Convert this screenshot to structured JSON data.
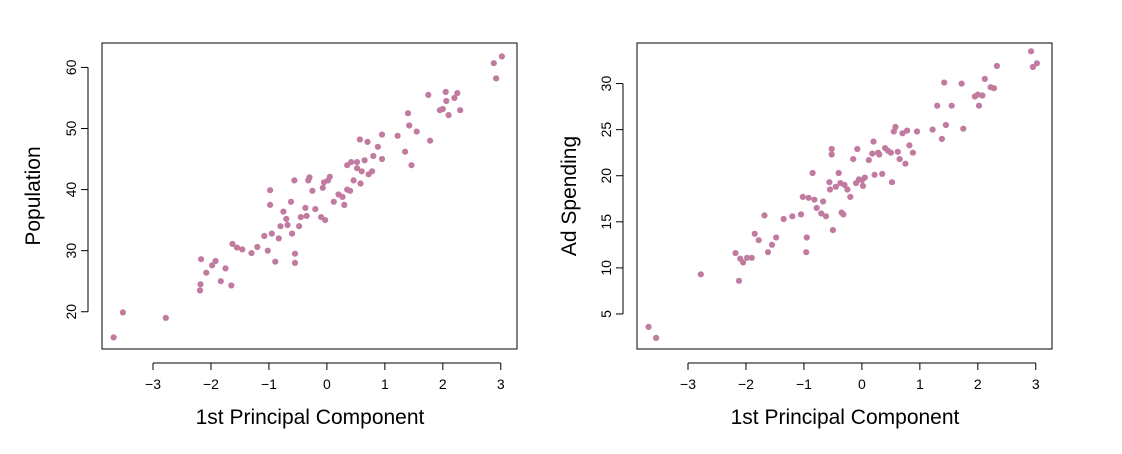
{
  "chart_data": [
    {
      "type": "scatter",
      "title": "",
      "xlabel": "1st Principal Component",
      "ylabel": "Population",
      "xlim": [
        -3.88,
        3.28
      ],
      "ylim": [
        13.9,
        64.0
      ],
      "xticks": [
        -3,
        -2,
        -1,
        0,
        1,
        2,
        3
      ],
      "xtick_labels": [
        "−3",
        "−2",
        "−1",
        "0",
        "1",
        "2",
        "3"
      ],
      "yticks": [
        20,
        30,
        40,
        50,
        60
      ],
      "ytick_labels": [
        "20",
        "30",
        "40",
        "50",
        "60"
      ],
      "grid": false,
      "point_color": "#c27ba0",
      "points": [
        [
          -3.68,
          15.8
        ],
        [
          -3.52,
          19.9
        ],
        [
          -2.78,
          19.0
        ],
        [
          -2.19,
          23.5
        ],
        [
          -2.18,
          24.5
        ],
        [
          -2.17,
          28.6
        ],
        [
          -2.08,
          26.4
        ],
        [
          -1.98,
          27.6
        ],
        [
          -1.92,
          28.3
        ],
        [
          -1.83,
          25.0
        ],
        [
          -1.75,
          27.1
        ],
        [
          -1.65,
          24.3
        ],
        [
          -1.63,
          31.1
        ],
        [
          -1.55,
          30.5
        ],
        [
          -1.46,
          30.2
        ],
        [
          -1.3,
          29.6
        ],
        [
          -1.2,
          30.6
        ],
        [
          -1.08,
          32.4
        ],
        [
          -1.02,
          30.0
        ],
        [
          -0.98,
          39.9
        ],
        [
          -0.98,
          37.5
        ],
        [
          -0.95,
          32.8
        ],
        [
          -0.89,
          28.2
        ],
        [
          -0.83,
          32.0
        ],
        [
          -0.8,
          34.0
        ],
        [
          -0.75,
          36.4
        ],
        [
          -0.7,
          35.2
        ],
        [
          -0.68,
          34.2
        ],
        [
          -0.62,
          38.0
        ],
        [
          -0.6,
          32.8
        ],
        [
          -0.56,
          41.5
        ],
        [
          -0.55,
          29.5
        ],
        [
          -0.55,
          28.0
        ],
        [
          -0.48,
          34.0
        ],
        [
          -0.45,
          35.5
        ],
        [
          -0.37,
          37.0
        ],
        [
          -0.35,
          35.7
        ],
        [
          -0.32,
          41.5
        ],
        [
          -0.3,
          42.0
        ],
        [
          -0.25,
          39.8
        ],
        [
          -0.2,
          36.8
        ],
        [
          -0.1,
          35.5
        ],
        [
          -0.07,
          40.3
        ],
        [
          -0.05,
          41.2
        ],
        [
          -0.03,
          35.0
        ],
        [
          0.02,
          41.5
        ],
        [
          0.05,
          42.1
        ],
        [
          0.12,
          38.0
        ],
        [
          0.2,
          39.2
        ],
        [
          0.27,
          38.8
        ],
        [
          0.3,
          37.5
        ],
        [
          0.35,
          40.0
        ],
        [
          0.4,
          39.8
        ],
        [
          0.35,
          44.0
        ],
        [
          0.42,
          44.5
        ],
        [
          0.46,
          41.5
        ],
        [
          0.52,
          43.5
        ],
        [
          0.52,
          44.5
        ],
        [
          0.57,
          48.2
        ],
        [
          0.58,
          41.0
        ],
        [
          0.6,
          43.0
        ],
        [
          0.65,
          44.8
        ],
        [
          0.7,
          47.8
        ],
        [
          0.72,
          42.5
        ],
        [
          0.78,
          43.0
        ],
        [
          0.8,
          45.5
        ],
        [
          0.88,
          47.0
        ],
        [
          0.95,
          49.0
        ],
        [
          0.95,
          45.0
        ],
        [
          1.22,
          48.8
        ],
        [
          1.35,
          46.2
        ],
        [
          1.4,
          52.5
        ],
        [
          1.42,
          50.5
        ],
        [
          1.46,
          44.0
        ],
        [
          1.55,
          49.5
        ],
        [
          1.75,
          55.5
        ],
        [
          1.78,
          48.0
        ],
        [
          1.95,
          53.0
        ],
        [
          2.0,
          53.2
        ],
        [
          2.05,
          56.0
        ],
        [
          2.06,
          54.5
        ],
        [
          2.1,
          52.2
        ],
        [
          2.2,
          55.0
        ],
        [
          2.25,
          55.8
        ],
        [
          2.3,
          53.0
        ],
        [
          2.88,
          60.7
        ],
        [
          2.92,
          58.2
        ],
        [
          3.02,
          61.8
        ]
      ]
    },
    {
      "type": "scatter",
      "title": "",
      "xlabel": "1st Principal Component",
      "ylabel": "Ad Spending",
      "xlim": [
        -3.88,
        3.28
      ],
      "ylim": [
        1.2,
        34.4
      ],
      "xticks": [
        -3,
        -2,
        -1,
        0,
        1,
        2,
        3
      ],
      "xtick_labels": [
        "−3",
        "−2",
        "−1",
        "0",
        "1",
        "2",
        "3"
      ],
      "yticks": [
        5,
        10,
        15,
        20,
        25,
        30
      ],
      "ytick_labels": [
        "5",
        "10",
        "15",
        "20",
        "25",
        "30"
      ],
      "grid": false,
      "point_color": "#c27ba0",
      "points": [
        [
          -3.68,
          3.6
        ],
        [
          -3.55,
          2.4
        ],
        [
          -2.78,
          9.3
        ],
        [
          -2.18,
          11.6
        ],
        [
          -2.12,
          8.6
        ],
        [
          -2.1,
          11.0
        ],
        [
          -2.05,
          10.6
        ],
        [
          -1.98,
          11.1
        ],
        [
          -1.9,
          11.1
        ],
        [
          -1.85,
          13.7
        ],
        [
          -1.78,
          13.0
        ],
        [
          -1.68,
          15.7
        ],
        [
          -1.62,
          11.7
        ],
        [
          -1.55,
          12.5
        ],
        [
          -1.48,
          13.3
        ],
        [
          -1.35,
          15.3
        ],
        [
          -1.2,
          15.6
        ],
        [
          -1.05,
          15.8
        ],
        [
          -1.02,
          17.7
        ],
        [
          -0.96,
          11.7
        ],
        [
          -0.95,
          13.3
        ],
        [
          -0.92,
          17.6
        ],
        [
          -0.85,
          20.3
        ],
        [
          -0.82,
          17.4
        ],
        [
          -0.78,
          16.5
        ],
        [
          -0.7,
          15.9
        ],
        [
          -0.67,
          17.2
        ],
        [
          -0.62,
          15.6
        ],
        [
          -0.56,
          19.3
        ],
        [
          -0.55,
          18.5
        ],
        [
          -0.52,
          22.3
        ],
        [
          -0.52,
          22.9
        ],
        [
          -0.5,
          14.1
        ],
        [
          -0.45,
          18.8
        ],
        [
          -0.4,
          20.3
        ],
        [
          -0.37,
          19.2
        ],
        [
          -0.35,
          16.0
        ],
        [
          -0.32,
          15.8
        ],
        [
          -0.3,
          19.0
        ],
        [
          -0.25,
          18.5
        ],
        [
          -0.2,
          17.7
        ],
        [
          -0.15,
          21.8
        ],
        [
          -0.1,
          19.2
        ],
        [
          -0.08,
          22.9
        ],
        [
          -0.05,
          19.6
        ],
        [
          0.0,
          19.5
        ],
        [
          0.02,
          18.9
        ],
        [
          0.05,
          19.8
        ],
        [
          0.12,
          21.7
        ],
        [
          0.18,
          22.4
        ],
        [
          0.2,
          23.7
        ],
        [
          0.22,
          20.1
        ],
        [
          0.28,
          22.5
        ],
        [
          0.3,
          22.3
        ],
        [
          0.35,
          20.2
        ],
        [
          0.4,
          23.0
        ],
        [
          0.45,
          22.7
        ],
        [
          0.5,
          22.5
        ],
        [
          0.52,
          19.3
        ],
        [
          0.55,
          24.8
        ],
        [
          0.58,
          25.3
        ],
        [
          0.62,
          22.6
        ],
        [
          0.65,
          21.8
        ],
        [
          0.7,
          24.6
        ],
        [
          0.75,
          21.3
        ],
        [
          0.78,
          24.9
        ],
        [
          0.82,
          23.3
        ],
        [
          0.88,
          22.5
        ],
        [
          0.95,
          24.8
        ],
        [
          1.22,
          25.0
        ],
        [
          1.3,
          27.6
        ],
        [
          1.38,
          24.0
        ],
        [
          1.42,
          30.1
        ],
        [
          1.45,
          25.5
        ],
        [
          1.55,
          27.6
        ],
        [
          1.72,
          30.0
        ],
        [
          1.75,
          25.1
        ],
        [
          1.95,
          28.6
        ],
        [
          2.0,
          28.8
        ],
        [
          2.02,
          27.6
        ],
        [
          2.08,
          28.7
        ],
        [
          2.12,
          30.5
        ],
        [
          2.22,
          29.6
        ],
        [
          2.28,
          29.5
        ],
        [
          2.33,
          31.9
        ],
        [
          2.92,
          33.5
        ],
        [
          2.95,
          31.8
        ],
        [
          3.02,
          32.2
        ]
      ]
    }
  ]
}
